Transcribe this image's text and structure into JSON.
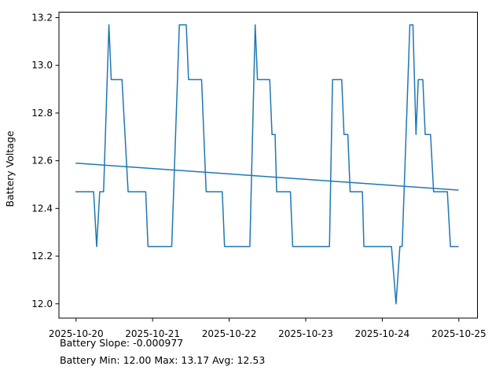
{
  "figure": {
    "ylabel": "Battery Voltage",
    "footer": {
      "line1": "Battery Slope: -0.000977",
      "line2": "Battery Min: 12.00 Max: 13.17 Avg: 12.53"
    },
    "colors": {
      "series_line": "#1f77b4",
      "trend_line": "#1f77b4",
      "ylabel_blue": "#1f77b4",
      "axis": "#000000",
      "background": "#ffffff"
    }
  },
  "chart_data": {
    "type": "line",
    "title": "",
    "xlabel": "",
    "ylabel": "Battery Voltage",
    "x_unit": "days since 2025-10-20",
    "xlim": [
      -0.223,
      5.243
    ],
    "ylim": [
      11.94,
      13.223
    ],
    "grid": false,
    "legend": "none",
    "x_ticks": {
      "positions": [
        0,
        1,
        2,
        3,
        4,
        5
      ],
      "labels": [
        "2025-10-20",
        "2025-10-21",
        "2025-10-22",
        "2025-10-23",
        "2025-10-24",
        "2025-10-25"
      ]
    },
    "y_ticks": [
      12.0,
      12.2,
      12.4,
      12.6,
      12.8,
      13.0,
      13.2
    ],
    "series": [
      {
        "name": "battery_voltage",
        "color": "#1f77b4",
        "points": [
          [
            0.0,
            12.47
          ],
          [
            0.23,
            12.47
          ],
          [
            0.27,
            12.24
          ],
          [
            0.31,
            12.47
          ],
          [
            0.36,
            12.47
          ],
          [
            0.43,
            13.17
          ],
          [
            0.46,
            12.94
          ],
          [
            0.6,
            12.94
          ],
          [
            0.68,
            12.47
          ],
          [
            0.91,
            12.47
          ],
          [
            0.94,
            12.24
          ],
          [
            1.25,
            12.24
          ],
          [
            1.35,
            13.17
          ],
          [
            1.44,
            13.17
          ],
          [
            1.47,
            12.94
          ],
          [
            1.64,
            12.94
          ],
          [
            1.7,
            12.47
          ],
          [
            1.91,
            12.47
          ],
          [
            1.94,
            12.24
          ],
          [
            2.27,
            12.24
          ],
          [
            2.34,
            13.17
          ],
          [
            2.37,
            12.94
          ],
          [
            2.53,
            12.94
          ],
          [
            2.56,
            12.71
          ],
          [
            2.6,
            12.71
          ],
          [
            2.62,
            12.47
          ],
          [
            2.8,
            12.47
          ],
          [
            2.83,
            12.24
          ],
          [
            3.31,
            12.24
          ],
          [
            3.35,
            12.94
          ],
          [
            3.47,
            12.94
          ],
          [
            3.5,
            12.71
          ],
          [
            3.55,
            12.71
          ],
          [
            3.58,
            12.47
          ],
          [
            3.74,
            12.47
          ],
          [
            3.76,
            12.24
          ],
          [
            4.12,
            12.24
          ],
          [
            4.18,
            12.0
          ],
          [
            4.23,
            12.24
          ],
          [
            4.26,
            12.24
          ],
          [
            4.36,
            13.17
          ],
          [
            4.4,
            13.17
          ],
          [
            4.44,
            12.71
          ],
          [
            4.47,
            12.94
          ],
          [
            4.53,
            12.94
          ],
          [
            4.56,
            12.71
          ],
          [
            4.63,
            12.71
          ],
          [
            4.67,
            12.47
          ],
          [
            4.85,
            12.47
          ],
          [
            4.89,
            12.24
          ],
          [
            4.99,
            12.24
          ]
        ]
      },
      {
        "name": "trend",
        "color": "#1f77b4",
        "points": [
          [
            0.0,
            12.59
          ],
          [
            4.99,
            12.477
          ]
        ]
      }
    ],
    "stats": {
      "slope": -0.000977,
      "min": 12.0,
      "max": 13.17,
      "avg": 12.53
    }
  }
}
